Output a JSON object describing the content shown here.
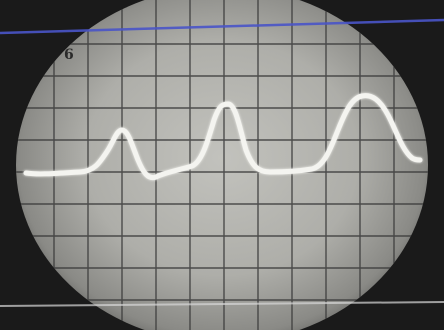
{
  "scene": {
    "subject": "oscilloscope-screen-photo",
    "corner_mark": "6",
    "colors": {
      "background": "#1c1c1c",
      "screen_center": "#b9b9b4",
      "screen_edge": "#7a7a76",
      "graticule": "#3a3a3a",
      "trace": "#f2f2ee",
      "top_line": "#4a55c8",
      "bottom_line": "#d8d8d8"
    }
  }
}
